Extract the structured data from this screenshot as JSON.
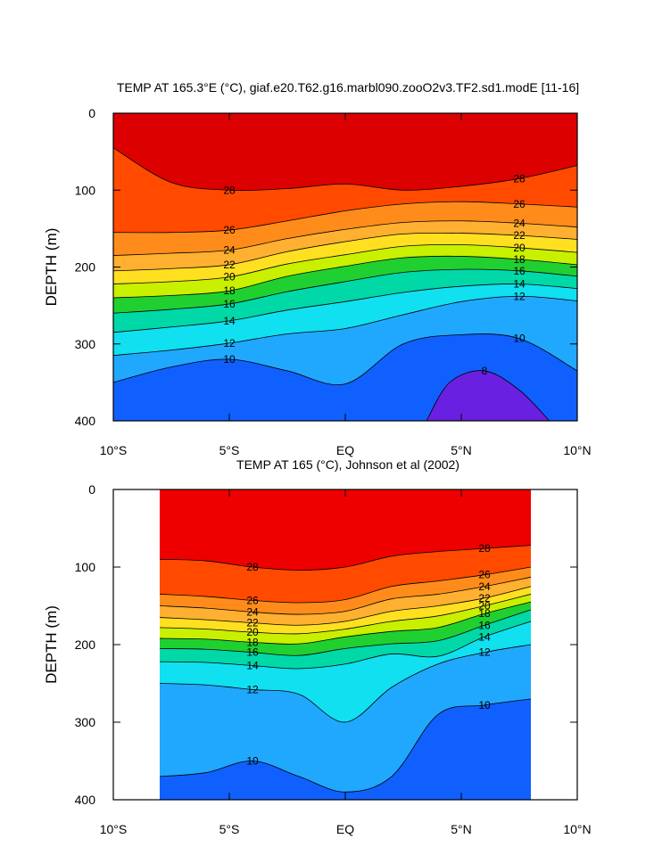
{
  "chart_data": [
    {
      "type": "contour",
      "title": "TEMP AT 165.3°E (°C), giaf.e20.T62.g16.marbl090.zooO2v3.TF2.sd1.modE [11-16]",
      "ylabel": "DEPTH (m)",
      "xlim": [
        -10,
        10
      ],
      "ylim": [
        0,
        400
      ],
      "y_inverted": true,
      "xticks": [
        {
          "value": -10,
          "label": "10°S"
        },
        {
          "value": -5,
          "label": "5°S"
        },
        {
          "value": 0,
          "label": "EQ"
        },
        {
          "value": 5,
          "label": "5°N"
        },
        {
          "value": 10,
          "label": "10°N"
        }
      ],
      "yticks": [
        0,
        100,
        200,
        300,
        400
      ],
      "top_color": "#dd0000",
      "contours": [
        {
          "level": 28,
          "color": "#ff4a00",
          "x": [
            -10,
            -7.5,
            -5,
            -2.5,
            0,
            2.5,
            5,
            7.5,
            10
          ],
          "depth": [
            45,
            90,
            100,
            98,
            92,
            100,
            95,
            85,
            68
          ]
        },
        {
          "level": 26,
          "color": "#ff8c1a",
          "x": [
            -10,
            -7.5,
            -5,
            -2.5,
            0,
            2.5,
            5,
            7.5,
            10
          ],
          "depth": [
            155,
            155,
            152,
            140,
            127,
            118,
            115,
            118,
            122
          ]
        },
        {
          "level": 24,
          "color": "#ffb030",
          "x": [
            -10,
            -7.5,
            -5,
            -2.5,
            0,
            2.5,
            5,
            7.5,
            10
          ],
          "depth": [
            185,
            182,
            178,
            163,
            151,
            142,
            140,
            143,
            148
          ]
        },
        {
          "level": 22,
          "color": "#ffe020",
          "x": [
            -10,
            -7.5,
            -5,
            -2.5,
            0,
            2.5,
            5,
            7.5,
            10
          ],
          "depth": [
            205,
            202,
            197,
            180,
            167,
            157,
            156,
            159,
            164
          ]
        },
        {
          "level": 20,
          "color": "#c8f000",
          "x": [
            -10,
            -7.5,
            -5,
            -2.5,
            0,
            2.5,
            5,
            7.5,
            10
          ],
          "depth": [
            222,
            219,
            213,
            196,
            184,
            173,
            171,
            175,
            181
          ]
        },
        {
          "level": 18,
          "color": "#20d030",
          "x": [
            -10,
            -7.5,
            -5,
            -2.5,
            0,
            2.5,
            5,
            7.5,
            10
          ],
          "depth": [
            240,
            237,
            231,
            212,
            199,
            188,
            186,
            190,
            197
          ]
        },
        {
          "level": 16,
          "color": "#00d8a8",
          "x": [
            -10,
            -7.5,
            -5,
            -2.5,
            0,
            2.5,
            5,
            7.5,
            10
          ],
          "depth": [
            260,
            255,
            248,
            232,
            219,
            207,
            203,
            205,
            212
          ]
        },
        {
          "level": 14,
          "color": "#10e0f0",
          "x": [
            -10,
            -7.5,
            -5,
            -2.5,
            0,
            2.5,
            5,
            7.5,
            10
          ],
          "depth": [
            285,
            278,
            270,
            256,
            245,
            233,
            225,
            222,
            228
          ]
        },
        {
          "level": 12,
          "color": "#20a8ff",
          "x": [
            -10,
            -7.5,
            -5,
            -2.5,
            0,
            2.5,
            5,
            7.5,
            10
          ],
          "depth": [
            315,
            308,
            299,
            287,
            280,
            262,
            245,
            238,
            244
          ]
        },
        {
          "level": 10,
          "color": "#1060ff",
          "x": [
            -10,
            -7.5,
            -5,
            -2.5,
            0,
            2.5,
            5,
            7.5,
            10
          ],
          "depth": [
            350,
            330,
            320,
            335,
            352,
            300,
            288,
            293,
            335
          ]
        },
        {
          "level": 8,
          "color": "#6a20e0",
          "x": [
            3.5,
            4.5,
            6,
            7.5,
            8.8
          ],
          "depth": [
            400,
            350,
            335,
            360,
            400
          ]
        }
      ]
    },
    {
      "type": "contour",
      "title": "TEMP AT 165 (°C), Johnson et al (2002)",
      "ylabel": "DEPTH (m)",
      "xlim": [
        -10,
        10
      ],
      "ylim": [
        0,
        400
      ],
      "y_inverted": true,
      "xticks": [
        {
          "value": -10,
          "label": "10°S"
        },
        {
          "value": -5,
          "label": "5°S"
        },
        {
          "value": 0,
          "label": "EQ"
        },
        {
          "value": 5,
          "label": "5°N"
        },
        {
          "value": 10,
          "label": "10°N"
        }
      ],
      "yticks": [
        0,
        100,
        200,
        300,
        400
      ],
      "top_color": "#ee0000",
      "contours": [
        {
          "level": 28,
          "color": "#ff4a00",
          "x": [
            -8,
            -6,
            -4,
            -2,
            0,
            2,
            4,
            6,
            8
          ],
          "depth": [
            90,
            92,
            100,
            104,
            100,
            86,
            80,
            76,
            72
          ]
        },
        {
          "level": 26,
          "color": "#ff8c1a",
          "x": [
            -8,
            -6,
            -4,
            -2,
            0,
            2,
            4,
            6,
            8
          ],
          "depth": [
            135,
            138,
            143,
            146,
            142,
            125,
            118,
            110,
            100
          ]
        },
        {
          "level": 24,
          "color": "#ffb030",
          "x": [
            -8,
            -6,
            -4,
            -2,
            0,
            2,
            4,
            6,
            8
          ],
          "depth": [
            150,
            153,
            158,
            161,
            157,
            141,
            135,
            125,
            113
          ]
        },
        {
          "level": 22,
          "color": "#ffe020",
          "x": [
            -8,
            -6,
            -4,
            -2,
            0,
            2,
            4,
            6,
            8
          ],
          "depth": [
            165,
            168,
            172,
            175,
            170,
            157,
            150,
            140,
            125
          ]
        },
        {
          "level": 20,
          "color": "#c8f000",
          "x": [
            -8,
            -6,
            -4,
            -2,
            0,
            2,
            4,
            6,
            8
          ],
          "depth": [
            178,
            180,
            184,
            186,
            180,
            170,
            163,
            150,
            135
          ]
        },
        {
          "level": 18,
          "color": "#20d030",
          "x": [
            -8,
            -6,
            -4,
            -2,
            0,
            2,
            4,
            6,
            8
          ],
          "depth": [
            192,
            193,
            197,
            199,
            190,
            183,
            178,
            160,
            145
          ]
        },
        {
          "level": 16,
          "color": "#00d8a8",
          "x": [
            -8,
            -6,
            -4,
            -2,
            0,
            2,
            4,
            6,
            8
          ],
          "depth": [
            205,
            206,
            210,
            214,
            205,
            199,
            195,
            175,
            155
          ]
        },
        {
          "level": 14,
          "color": "#10e0f0",
          "x": [
            -8,
            -6,
            -4,
            -2,
            0,
            2,
            4,
            6,
            8
          ],
          "depth": [
            222,
            223,
            227,
            231,
            225,
            212,
            215,
            190,
            170
          ]
        },
        {
          "level": 12,
          "color": "#20a8ff",
          "x": [
            -8,
            -6,
            -4,
            -2,
            0,
            2,
            4,
            6,
            8
          ],
          "depth": [
            250,
            252,
            258,
            264,
            300,
            255,
            225,
            210,
            200
          ]
        },
        {
          "level": 10,
          "color": "#1060ff",
          "x": [
            -8,
            -6,
            -4,
            -2,
            0,
            2,
            4,
            6,
            8
          ],
          "depth": [
            370,
            365,
            350,
            370,
            390,
            370,
            290,
            278,
            270
          ]
        }
      ]
    }
  ]
}
